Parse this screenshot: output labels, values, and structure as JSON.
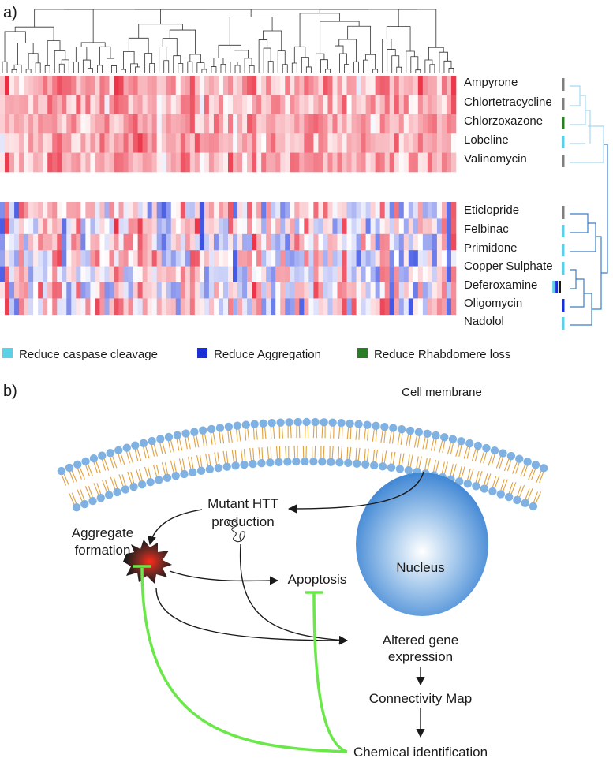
{
  "panel_a": {
    "label": "a)",
    "compounds": [
      {
        "name": "Ampyrone",
        "colors": [
          "#7f7f7f"
        ]
      },
      {
        "name": "Chlortetracycline",
        "colors": [
          "#7f7f7f"
        ]
      },
      {
        "name": "Chlorzoxazone",
        "colors": [
          "#2a7d25"
        ]
      },
      {
        "name": "Lobeline",
        "colors": [
          "#5bd0e6"
        ]
      },
      {
        "name": "Valinomycin",
        "colors": [
          "#7f7f7f"
        ]
      },
      {
        "name": "Eticlopride",
        "colors": [
          "#7f7f7f"
        ]
      },
      {
        "name": "Felbinac",
        "colors": [
          "#5bd0e6"
        ]
      },
      {
        "name": "Primidone",
        "colors": [
          "#5bd0e6"
        ]
      },
      {
        "name": "Copper Sulphate",
        "colors": [
          "#5bd0e6"
        ]
      },
      {
        "name": "Deferoxamine",
        "colors": [
          "#5bd0e6",
          "#1a2fd6",
          "#1a1a1a"
        ]
      },
      {
        "name": "Oligomycin",
        "colors": [
          "#1a2fd6"
        ]
      },
      {
        "name": "Nadolol",
        "colors": [
          "#5bd0e6"
        ]
      }
    ],
    "legend": [
      {
        "label": "Reduce caspase cleavage",
        "color": "#5bd0e6"
      },
      {
        "label": "Reduce Aggregation",
        "color": "#1a2fd6"
      },
      {
        "label": "Reduce Rhabdomere loss",
        "color": "#2a7d25"
      }
    ]
  },
  "panel_b": {
    "label": "b)",
    "cell_membrane": "Cell membrane",
    "mutant_htt": [
      "Mutant HTT",
      "production"
    ],
    "aggregate": [
      "Aggregate",
      "formation"
    ],
    "nucleus": "Nucleus",
    "apoptosis": "Apoptosis",
    "altered": [
      "Altered gene",
      "expression"
    ],
    "cmap": "Connectivity Map",
    "chemical": "Chemical identification"
  }
}
